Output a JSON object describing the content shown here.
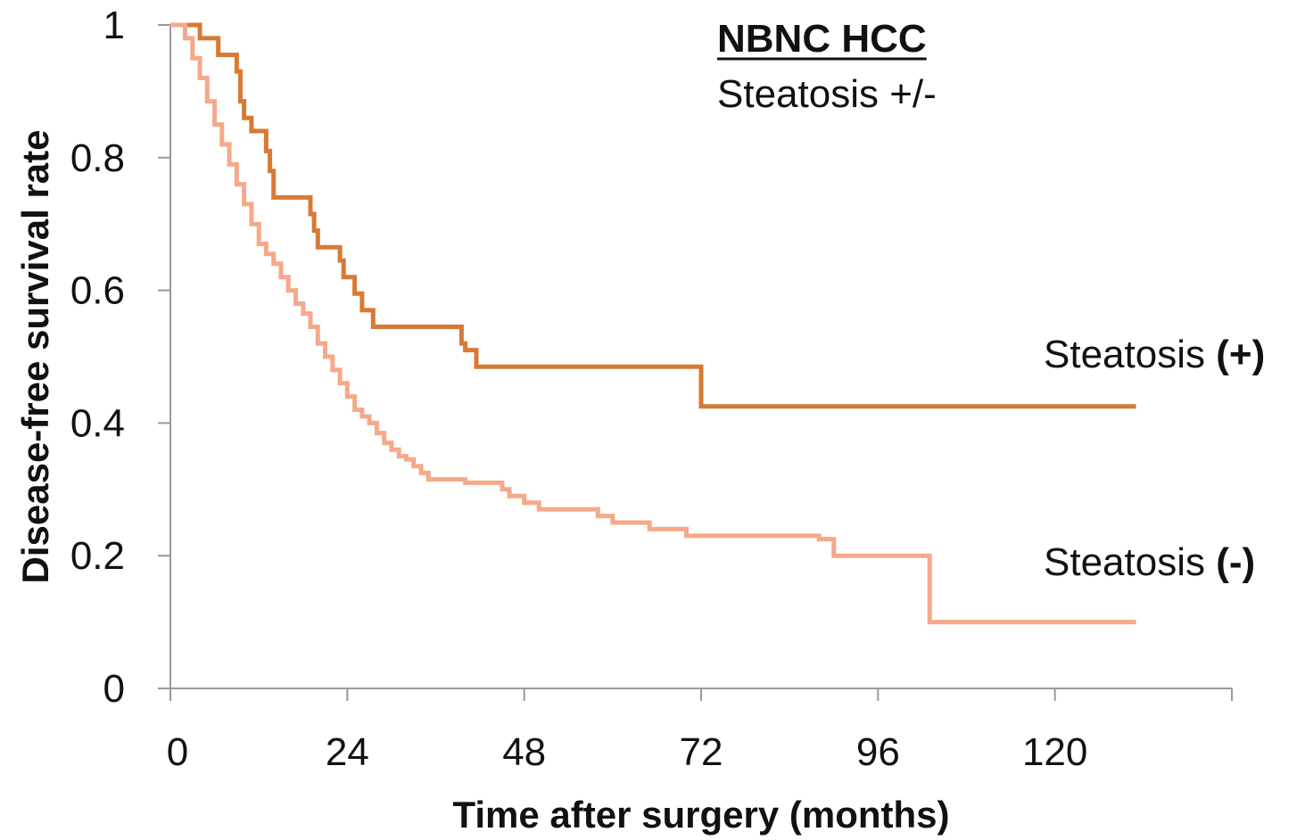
{
  "chart_data": {
    "type": "line",
    "subtype": "kaplan-meier step",
    "title": "NBNC HCC",
    "subtitle": "Steatosis +/-",
    "xlabel": "Time after surgery (months)",
    "ylabel": "Disease-free survival rate",
    "xlim": [
      0,
      144
    ],
    "ylim": [
      0,
      1
    ],
    "xticks": [
      0,
      24,
      48,
      72,
      96,
      120
    ],
    "xtick_labels": [
      "0",
      "24",
      "48",
      "72",
      "96",
      "120"
    ],
    "yticks": [
      0,
      0.2,
      0.4,
      0.6,
      0.8,
      1
    ],
    "ytick_labels": [
      "0",
      "0.2",
      "0.4",
      "0.6",
      "0.8",
      "1"
    ],
    "grid": false,
    "legend": "none",
    "series": [
      {
        "label_name": "Steatosis ",
        "label_sign": "(+)",
        "color": "#D77A35",
        "x": [
          0,
          4,
          6.5,
          9,
          9.5,
          10,
          11,
          13,
          13.5,
          14,
          19,
          19.5,
          20,
          23,
          23.5,
          25,
          26,
          27.5,
          39.5,
          40,
          41.5,
          72,
          131
        ],
        "y": [
          1.0,
          0.98,
          0.955,
          0.93,
          0.885,
          0.86,
          0.84,
          0.81,
          0.78,
          0.74,
          0.715,
          0.69,
          0.665,
          0.645,
          0.62,
          0.595,
          0.57,
          0.545,
          0.52,
          0.51,
          0.485,
          0.425,
          0.425
        ]
      },
      {
        "label_name": "Steatosis ",
        "label_sign": "(-)",
        "color": "#F5A98A",
        "x": [
          0,
          2,
          3,
          4,
          5,
          6,
          7,
          8,
          9,
          10,
          11,
          12,
          13,
          14,
          15,
          16,
          17,
          18,
          19,
          20,
          21,
          22,
          23,
          24,
          25,
          26,
          27,
          28,
          29,
          30,
          31,
          32,
          33,
          34,
          35,
          40,
          45,
          46,
          48,
          50,
          58,
          60,
          65,
          70,
          88,
          90,
          102,
          103,
          131
        ],
        "y": [
          1.0,
          0.98,
          0.95,
          0.92,
          0.885,
          0.85,
          0.82,
          0.79,
          0.76,
          0.73,
          0.7,
          0.67,
          0.655,
          0.64,
          0.62,
          0.6,
          0.58,
          0.565,
          0.545,
          0.52,
          0.5,
          0.48,
          0.46,
          0.44,
          0.42,
          0.41,
          0.4,
          0.385,
          0.37,
          0.36,
          0.35,
          0.345,
          0.335,
          0.325,
          0.315,
          0.31,
          0.3,
          0.29,
          0.28,
          0.27,
          0.26,
          0.25,
          0.24,
          0.23,
          0.225,
          0.2,
          0.2,
          0.1,
          0.1
        ]
      }
    ]
  }
}
